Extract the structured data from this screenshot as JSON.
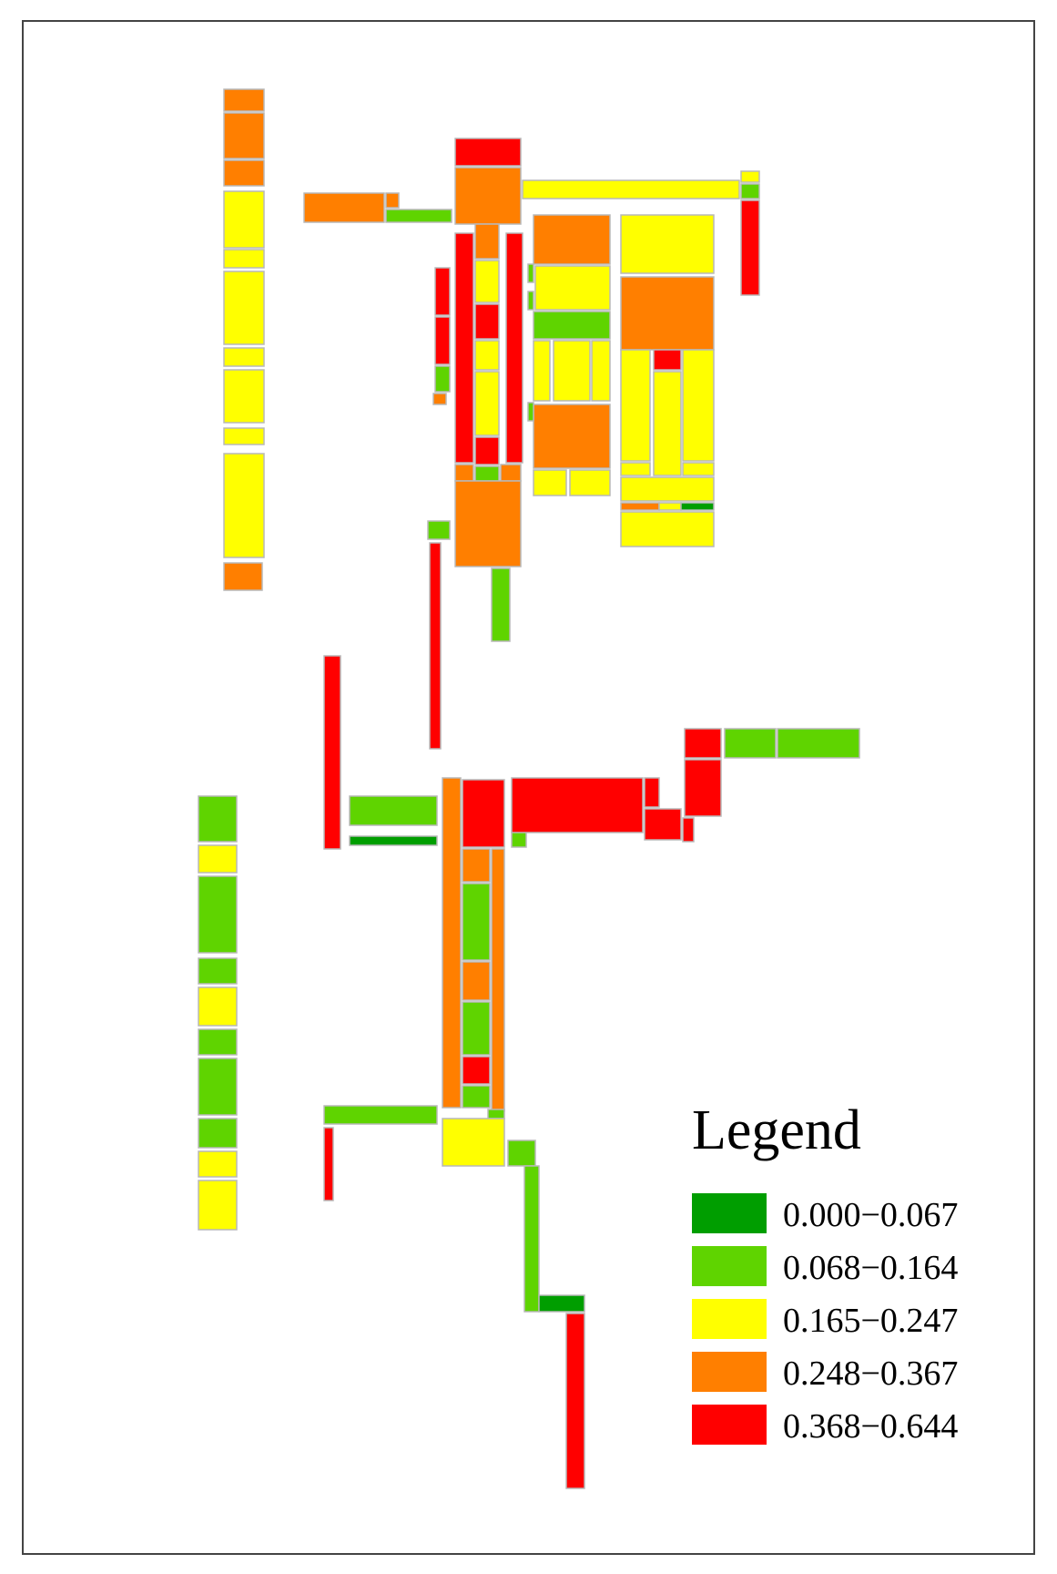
{
  "colors": {
    "class1": "#009e00",
    "class2": "#5fd400",
    "class3": "#ffff00",
    "class4": "#ff7f00",
    "class5": "#ff0000",
    "outline": "#b8b8b8",
    "frame": "#444444"
  },
  "legend": {
    "title": "Legend",
    "items": [
      {
        "label": "0.000−0.067",
        "color": "#009e00"
      },
      {
        "label": "0.068−0.164",
        "color": "#5fd400"
      },
      {
        "label": "0.165−0.247",
        "color": "#ffff00"
      },
      {
        "label": "0.248−0.367",
        "color": "#ff7f00"
      },
      {
        "label": "0.368−0.644",
        "color": "#ff0000"
      }
    ]
  }
}
